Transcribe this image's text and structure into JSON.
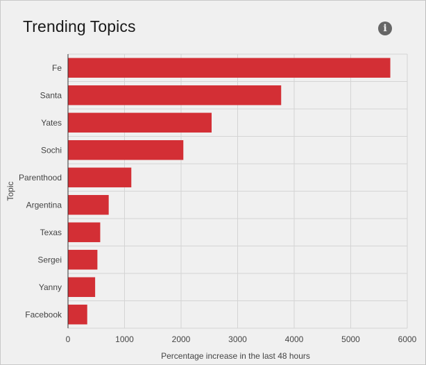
{
  "header": {
    "title": "Trending Topics",
    "info_icon": "info-icon",
    "info_glyph": "i"
  },
  "chart_data": {
    "type": "bar",
    "orientation": "horizontal",
    "title": "",
    "xlabel": "Percentage increase in the last 48 hours",
    "ylabel": "Topic",
    "categories": [
      "Fe",
      "Santa",
      "Yates",
      "Sochi",
      "Parenthood",
      "Argentina",
      "Texas",
      "Sergei",
      "Yanny",
      "Facebook"
    ],
    "values": [
      5700,
      3770,
      2540,
      2040,
      1120,
      720,
      570,
      520,
      480,
      340
    ],
    "xlim": [
      0,
      6000
    ],
    "xticks": [
      0,
      1000,
      2000,
      3000,
      4000,
      5000,
      6000
    ],
    "grid": true,
    "bar_color": "#d32f35"
  }
}
